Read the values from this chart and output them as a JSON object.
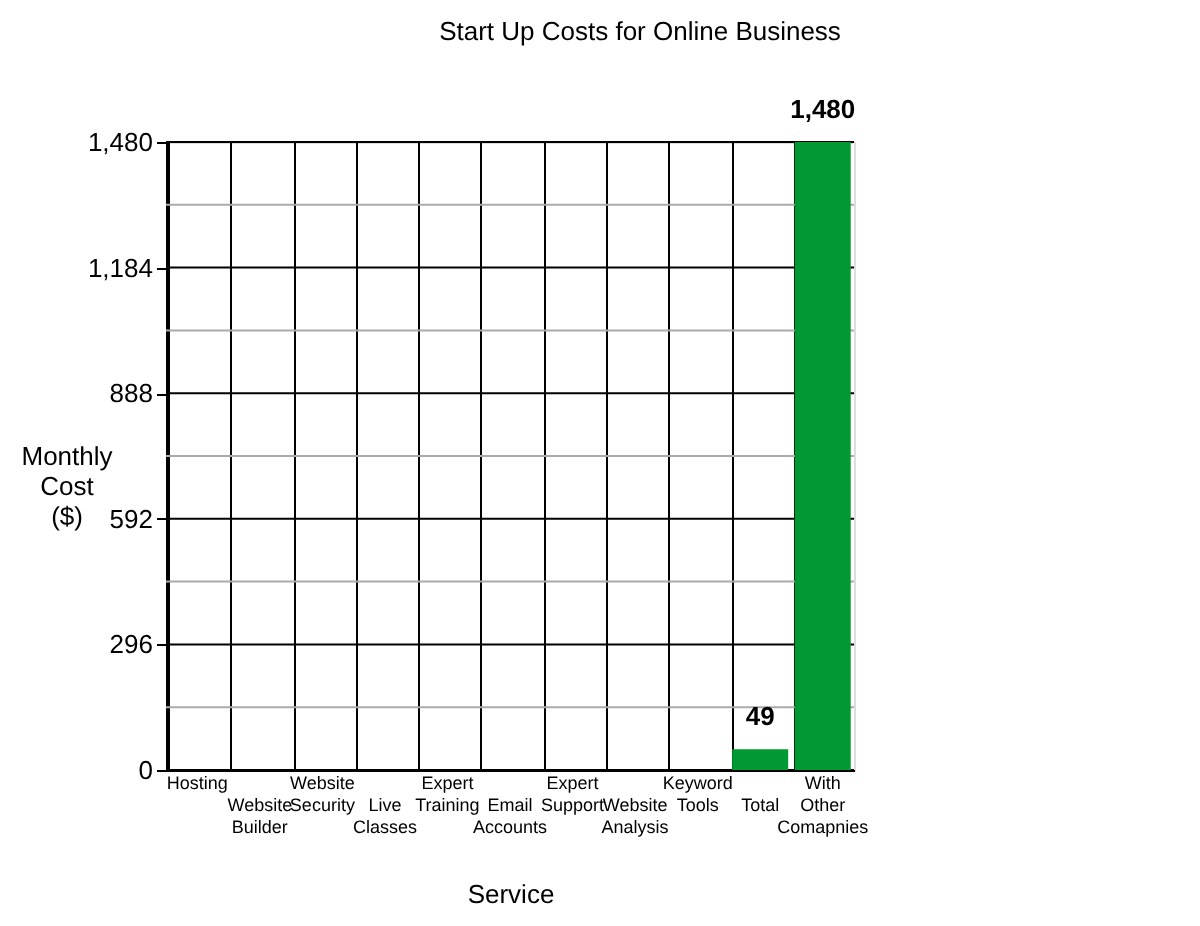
{
  "chart_data": {
    "type": "bar",
    "title": "Start Up Costs for Online Business",
    "xlabel": "Service",
    "ylabel": "Monthly Cost ($)",
    "categories": [
      "Hosting",
      "Website Builder",
      "Website Security",
      "Live Classes",
      "Expert Training",
      "Email Accounts",
      "Expert Support",
      "Website Analysis",
      "Keyword Tools",
      "Total",
      "With Other Comapnies"
    ],
    "series": [
      {
        "color": "#009933",
        "values": [
          0,
          0,
          0,
          0,
          0,
          0,
          0,
          0,
          0,
          49,
          1480
        ]
      }
    ],
    "value_labels": [
      null,
      null,
      null,
      null,
      null,
      null,
      null,
      null,
      null,
      "49",
      "1,480"
    ],
    "ylim": [
      0,
      1480
    ],
    "yticks": [
      {
        "value": 0,
        "label": "0"
      },
      {
        "value": 148,
        "label": null
      },
      {
        "value": 296,
        "label": "296"
      },
      {
        "value": 444,
        "label": null
      },
      {
        "value": 592,
        "label": "592"
      },
      {
        "value": 740,
        "label": null
      },
      {
        "value": 888,
        "label": "888"
      },
      {
        "value": 1036,
        "label": null
      },
      {
        "value": 1184,
        "label": "1,184"
      },
      {
        "value": 1332,
        "label": null
      },
      {
        "value": 1480,
        "label": "1,480"
      }
    ],
    "grid": true
  }
}
